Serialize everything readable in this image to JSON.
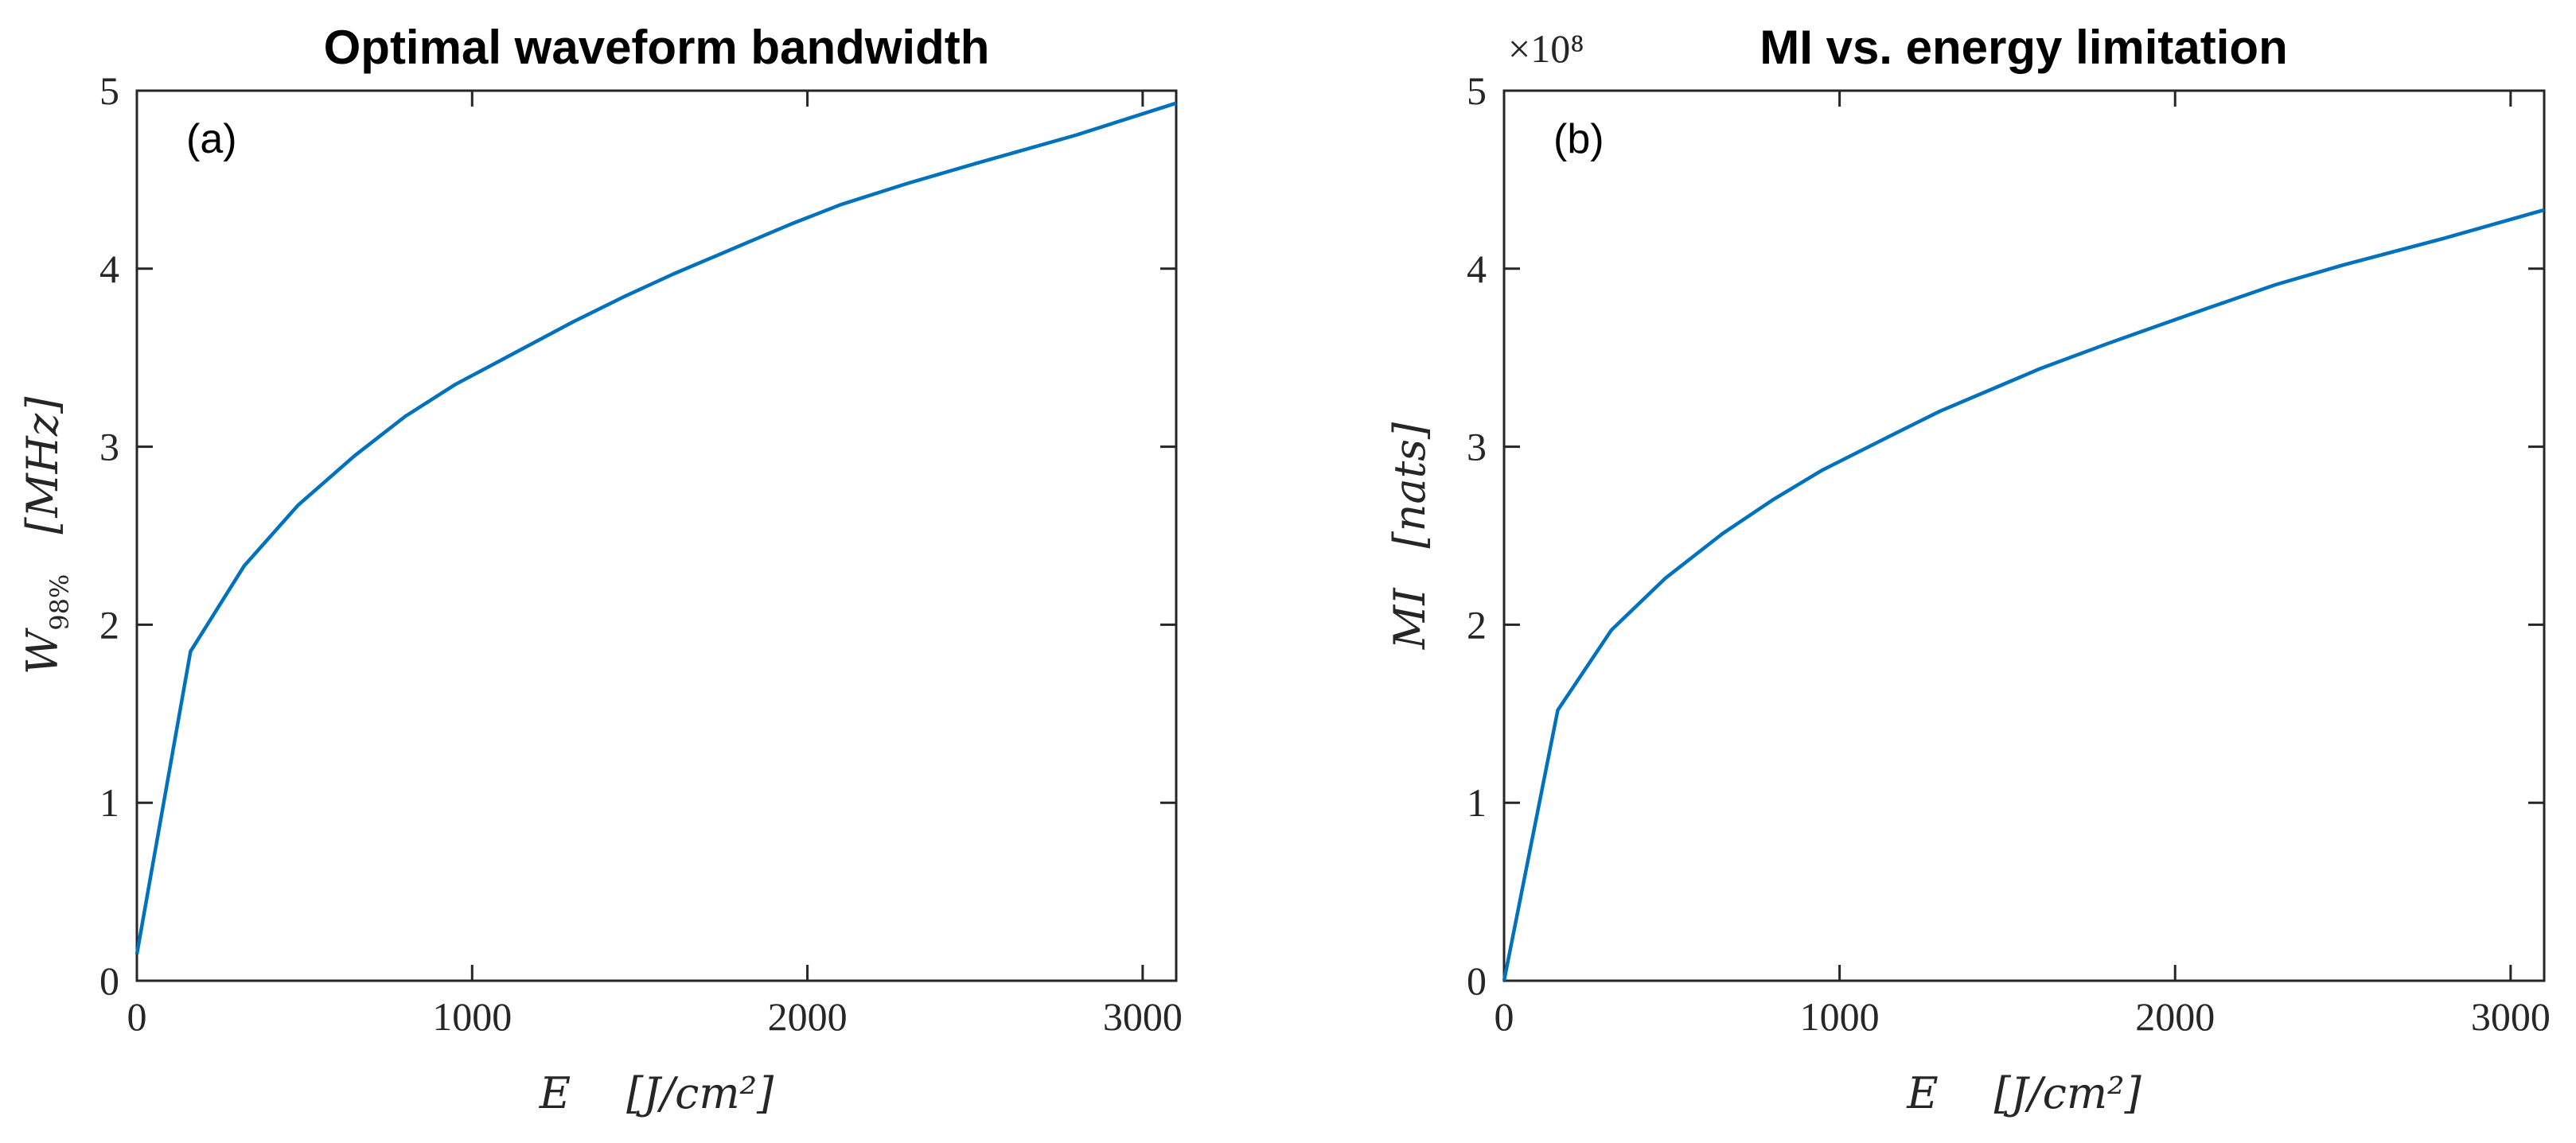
{
  "chart_data": [
    {
      "type": "line",
      "title": "Optimal waveform bandwidth",
      "panel_label": "(a)",
      "xlabel": "E [J/cm²]",
      "xlabel_var": "E",
      "xlabel_unit": "[J/cm²]",
      "ylabel": "W98% [MHz]",
      "ylabel_var": "W",
      "ylabel_sub": "98%",
      "ylabel_unit": "[MHz]",
      "xlim": [
        0,
        3100
      ],
      "ylim": [
        0,
        5
      ],
      "xticks": [
        0,
        1000,
        2000,
        3000
      ],
      "yticks": [
        0,
        1,
        2,
        3,
        4,
        5
      ],
      "exponent_label": "",
      "series": [
        {
          "name": "W98%",
          "color": "#0072BD",
          "x": [
            0,
            160,
            320,
            480,
            650,
            800,
            950,
            1150,
            1300,
            1450,
            1600,
            1800,
            1950,
            2100,
            2300,
            2500,
            2800,
            3100
          ],
          "y": [
            0.15,
            1.85,
            2.33,
            2.67,
            2.95,
            3.17,
            3.35,
            3.55,
            3.7,
            3.84,
            3.97,
            4.13,
            4.25,
            4.36,
            4.48,
            4.59,
            4.75,
            4.93
          ]
        }
      ]
    },
    {
      "type": "line",
      "title": "MI vs. energy limitation",
      "panel_label": "(b)",
      "xlabel": "E [J/cm²]",
      "xlabel_var": "E",
      "xlabel_unit": "[J/cm²]",
      "ylabel": "MI [nats]",
      "ylabel_var": "MI",
      "ylabel_sub": "",
      "ylabel_unit": "[nats]",
      "xlim": [
        0,
        3100
      ],
      "ylim": [
        0,
        5
      ],
      "xticks": [
        0,
        1000,
        2000,
        3000
      ],
      "yticks": [
        0,
        1,
        2,
        3,
        4,
        5
      ],
      "exponent_label": "×10⁸",
      "series": [
        {
          "name": "MI",
          "color": "#0072BD",
          "x": [
            0,
            160,
            320,
            480,
            650,
            800,
            950,
            1150,
            1300,
            1450,
            1600,
            1800,
            1950,
            2100,
            2300,
            2500,
            2800,
            3100
          ],
          "y": [
            0.0,
            1.52,
            1.97,
            2.26,
            2.51,
            2.7,
            2.87,
            3.06,
            3.2,
            3.32,
            3.44,
            3.58,
            3.68,
            3.78,
            3.91,
            4.02,
            4.17,
            4.33
          ]
        }
      ]
    }
  ]
}
